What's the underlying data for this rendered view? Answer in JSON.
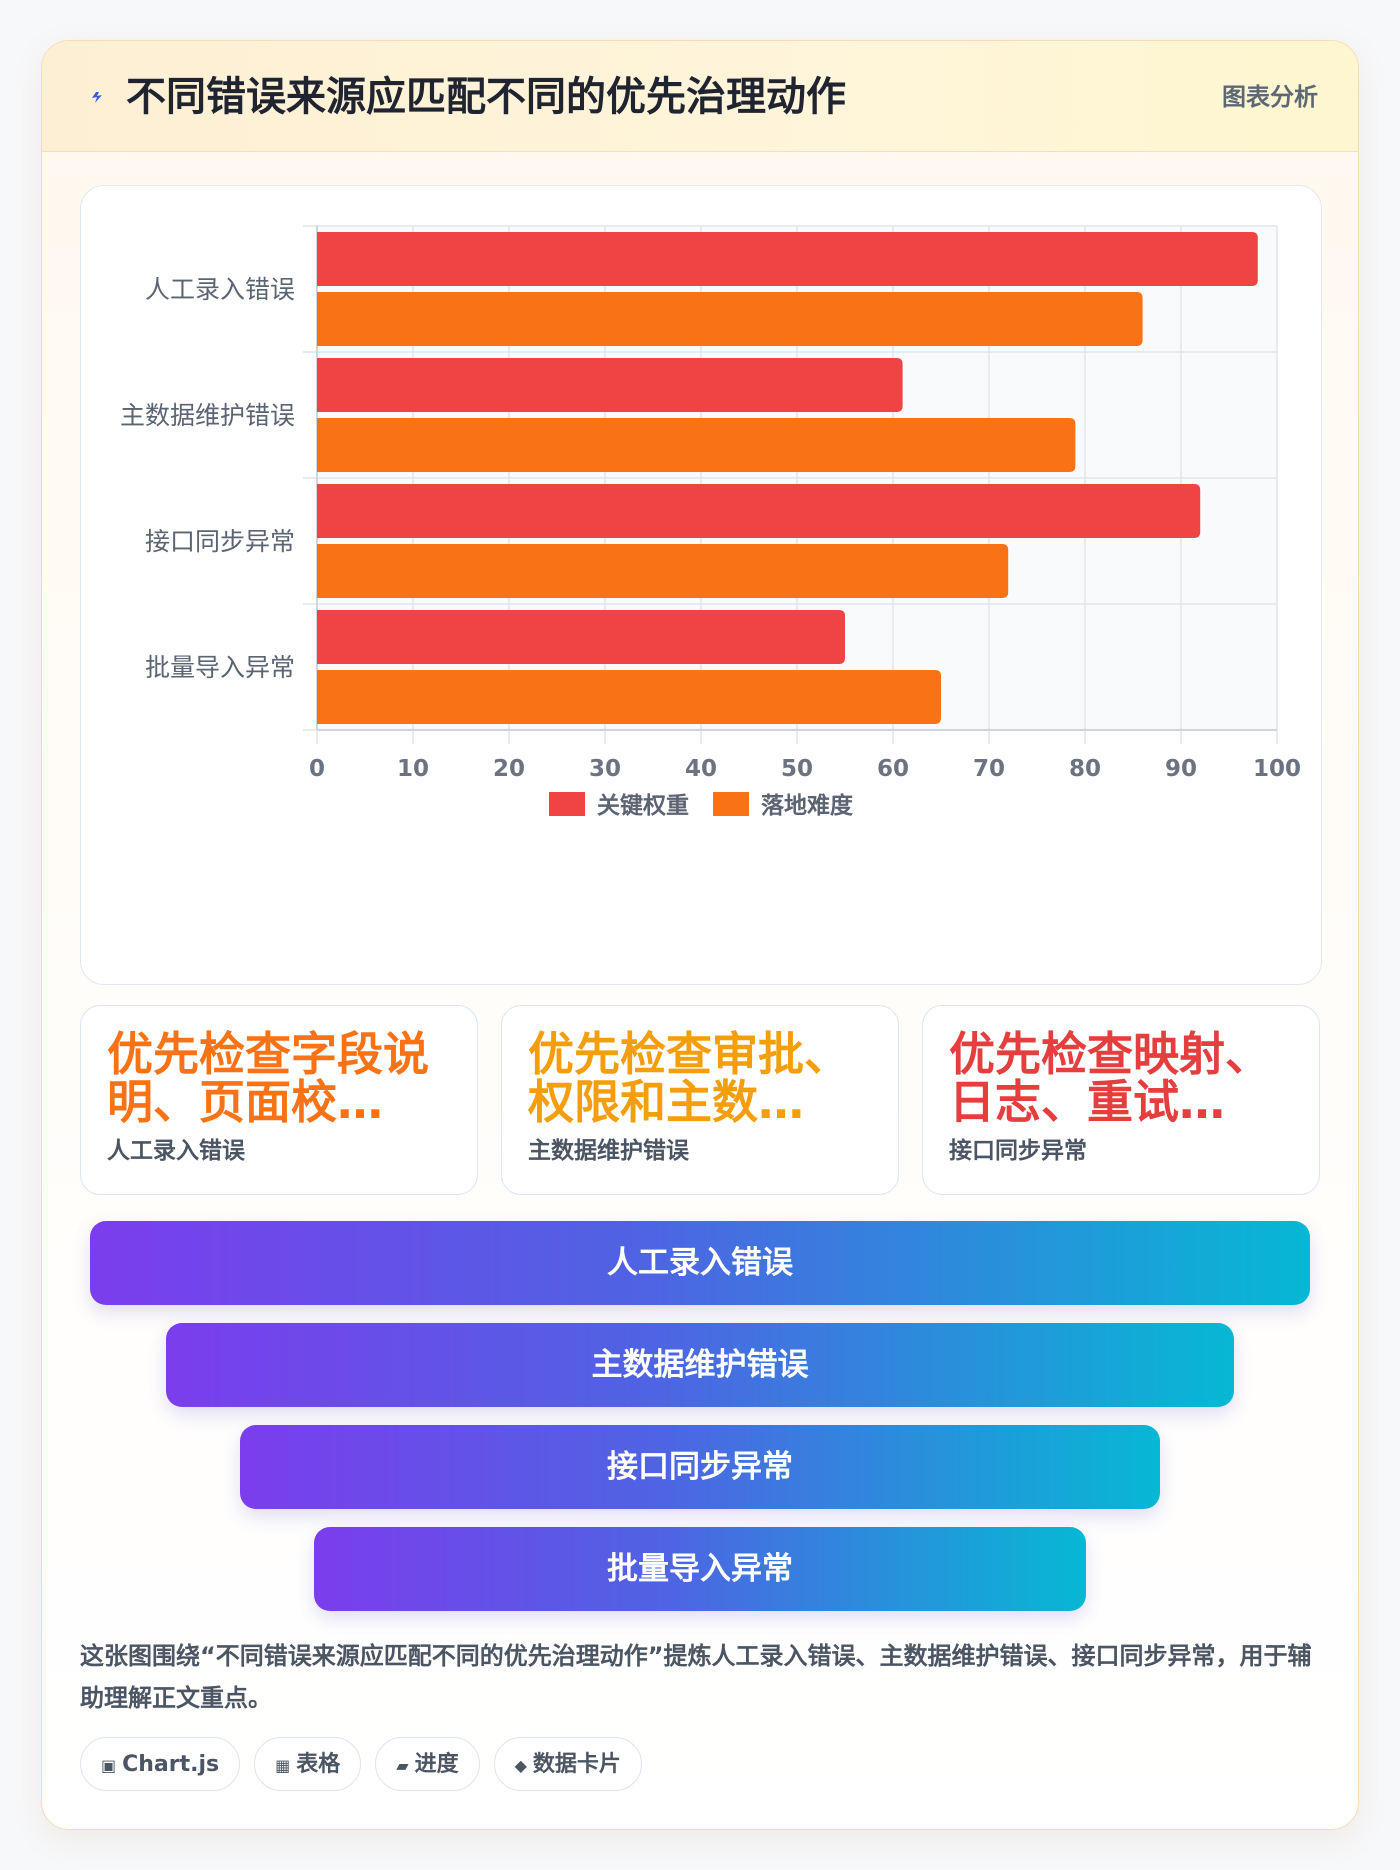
{
  "header": {
    "title": "不同错误来源应匹配不同的优先治理动作",
    "badge": "图表分析",
    "icon": "lightning-icon",
    "icon_color": "#3b5bdb"
  },
  "chart_data": {
    "type": "bar",
    "orientation": "horizontal",
    "categories": [
      "人工录入错误",
      "主数据维护错误",
      "接口同步异常",
      "批量导入异常"
    ],
    "series": [
      {
        "name": "关键权重",
        "color": "#ef4444",
        "values": [
          98,
          61,
          92,
          55
        ]
      },
      {
        "name": "落地难度",
        "color": "#f97316",
        "values": [
          86,
          79,
          72,
          65
        ]
      }
    ],
    "xlim": [
      0,
      100
    ],
    "xticks": [
      0,
      10,
      20,
      30,
      40,
      50,
      60,
      70,
      80,
      90,
      100
    ],
    "grid": true,
    "legend_position": "bottom"
  },
  "stats": [
    {
      "value": "优先检查字段说明、页面校…",
      "label": "人工录入错误",
      "color": "#f97316"
    },
    {
      "value": "优先检查审批、权限和主数…",
      "label": "主数据维护错误",
      "color": "#f59e0b"
    },
    {
      "value": "优先检查映射、日志、重试…",
      "label": "接口同步异常",
      "color": "#e53e3e"
    }
  ],
  "funnel": [
    "人工录入错误",
    "主数据维护错误",
    "接口同步异常",
    "批量导入异常"
  ],
  "description": "这张图围绕“不同错误来源应匹配不同的优先治理动作”提炼人工录入错误、主数据维护错误、接口同步异常，用于辅助理解正文重点。",
  "chips": [
    {
      "icon": "▣",
      "label": "Chart.js"
    },
    {
      "icon": "▦",
      "label": "表格"
    },
    {
      "icon": "▰",
      "label": "进度"
    },
    {
      "icon": "◆",
      "label": "数据卡片"
    }
  ]
}
